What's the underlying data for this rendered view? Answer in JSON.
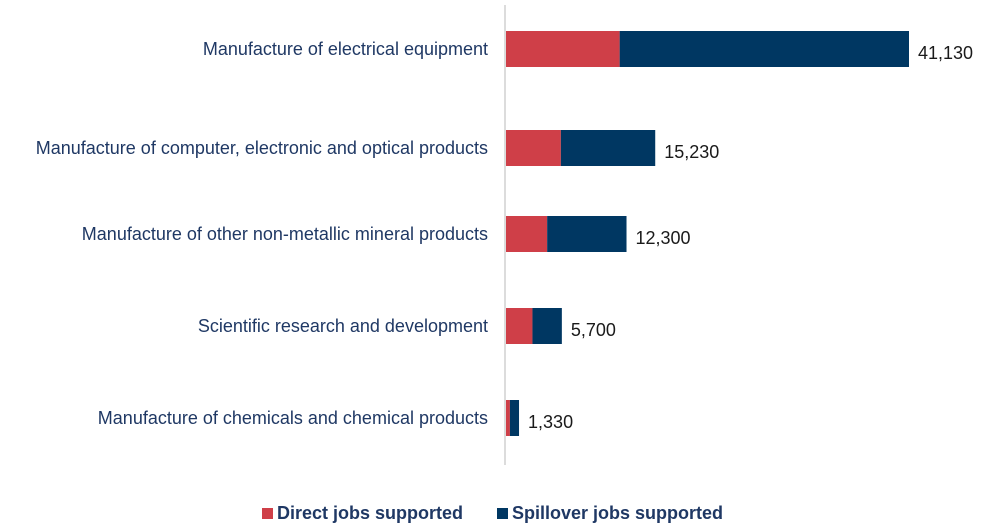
{
  "chart_data": {
    "type": "bar",
    "orientation": "horizontal",
    "stacked": true,
    "categories": [
      "Manufacture of electrical equipment",
      "Manufacture of computer, electronic and optical products",
      "Manufacture of other non-metallic mineral products",
      "Scientific research and development",
      "Manufacture of chemicals and chemical products"
    ],
    "series": [
      {
        "name": "Direct jobs supported",
        "color": "#cf3f48",
        "values": [
          11600,
          5600,
          4200,
          2700,
          400
        ]
      },
      {
        "name": "Spillover jobs supported",
        "color": "#003762",
        "values": [
          29530,
          9630,
          8100,
          3000,
          930
        ]
      }
    ],
    "totals": [
      "41,130",
      "15,230",
      "12,300",
      "5,700",
      "1,330"
    ],
    "xlim": [
      0,
      41130
    ],
    "legend_position": "bottom",
    "grid": false
  }
}
